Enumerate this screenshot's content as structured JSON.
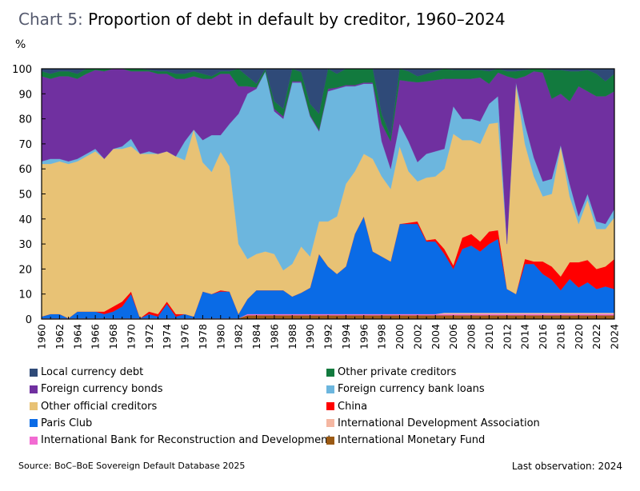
{
  "title": {
    "label": "Chart 5",
    "sep": ":",
    "text": " Proportion of debt in default by creditor, 1960–2024"
  },
  "footer": {
    "source": "Source: BoC–BoE Sovereign Default Database 2025",
    "last_observation": "Last observation: 2024"
  },
  "chart_data": {
    "type": "area",
    "stacked": true,
    "title": "Proportion of debt in default by creditor, 1960–2024",
    "ylabel": "%",
    "ylim": [
      0,
      100
    ],
    "yticks": [
      0,
      10,
      20,
      30,
      40,
      50,
      60,
      70,
      80,
      90,
      100
    ],
    "xlim": [
      1960,
      2024
    ],
    "xticks": [
      1960,
      1962,
      1964,
      1966,
      1968,
      1970,
      1972,
      1974,
      1976,
      1978,
      1980,
      1982,
      1984,
      1986,
      1988,
      1990,
      1992,
      1994,
      1996,
      1998,
      2000,
      2002,
      2004,
      2006,
      2008,
      2010,
      2012,
      2014,
      2016,
      2018,
      2020,
      2022,
      2024
    ],
    "grid": false,
    "legend_placement": "bottom",
    "x": [
      1960,
      1961,
      1962,
      1963,
      1964,
      1965,
      1966,
      1967,
      1968,
      1969,
      1970,
      1971,
      1972,
      1973,
      1974,
      1975,
      1976,
      1977,
      1978,
      1979,
      1980,
      1981,
      1982,
      1983,
      1984,
      1985,
      1986,
      1987,
      1988,
      1989,
      1990,
      1991,
      1992,
      1993,
      1994,
      1995,
      1996,
      1997,
      1998,
      1999,
      2000,
      2001,
      2002,
      2003,
      2004,
      2005,
      2006,
      2007,
      2008,
      2009,
      2010,
      2011,
      2012,
      2013,
      2014,
      2015,
      2016,
      2017,
      2018,
      2019,
      2020,
      2021,
      2022,
      2023,
      2024
    ],
    "series": [
      {
        "name": "International Monetary Fund",
        "color": "#9B5A14",
        "values": [
          0.3,
          0.3,
          0.3,
          0.3,
          0.3,
          0.3,
          0.3,
          0.3,
          0.3,
          0.3,
          0.3,
          0.3,
          0.3,
          0.3,
          0.3,
          0.3,
          0.3,
          0.3,
          0.3,
          0.3,
          0.3,
          0.3,
          0.3,
          1.5,
          1.5,
          1.5,
          1.5,
          1.5,
          1.5,
          1.5,
          1.5,
          1.5,
          1.5,
          1.5,
          1.5,
          1.5,
          1.5,
          1.5,
          1.5,
          1.5,
          1.5,
          1.5,
          1.5,
          1.5,
          1.5,
          1.5,
          1.5,
          1.5,
          1.5,
          1.5,
          1.5,
          1.5,
          1.5,
          1.5,
          1.5,
          1.5,
          1.5,
          1.5,
          1.5,
          1.5,
          1.5,
          1.5,
          1.5,
          1.5,
          1.5
        ]
      },
      {
        "name": "International Bank for Reconstruction and Development",
        "color": "#F26BD2",
        "values": [
          0,
          0,
          0,
          0,
          0,
          0,
          0,
          0,
          0,
          0,
          0,
          0,
          0,
          0,
          0,
          0,
          0,
          0,
          0,
          0,
          0,
          0,
          0,
          0.5,
          0.5,
          0.5,
          0.5,
          0.5,
          0.5,
          0.5,
          0.5,
          0.5,
          0.5,
          0.5,
          0.5,
          0.5,
          0.5,
          0.5,
          0.5,
          0.5,
          0.5,
          0.5,
          0.5,
          0.5,
          0.5,
          0.5,
          0.5,
          0.5,
          0.5,
          0.5,
          0.5,
          0.5,
          0.5,
          0.5,
          0.5,
          0.5,
          0.5,
          0.5,
          0.5,
          0.5,
          0.5,
          0.5,
          0.5,
          0.5,
          0.5
        ]
      },
      {
        "name": "International Development Association",
        "color": "#F5B7A2",
        "values": [
          0,
          0,
          0,
          0,
          0,
          0,
          0,
          0,
          0,
          0,
          0,
          0,
          0,
          0,
          0,
          0,
          0,
          0,
          0,
          0,
          0,
          0,
          0,
          0,
          0,
          0,
          0,
          0,
          0,
          0,
          0,
          0,
          0,
          0,
          0,
          0,
          0,
          0,
          0,
          0,
          0,
          0,
          0,
          0,
          0,
          0.5,
          0.5,
          0.5,
          0.5,
          0.5,
          0.5,
          0.5,
          0.5,
          0.5,
          0.5,
          0.5,
          0.5,
          0.5,
          0.5,
          0.5,
          0.5,
          0.5,
          0.5,
          0.5,
          0.5
        ]
      },
      {
        "name": "Paris Club",
        "color": "#0A6BE6",
        "values": [
          0.7,
          1.7,
          1.7,
          0,
          2.7,
          2.7,
          2.7,
          1.7,
          2.7,
          4.7,
          9.7,
          0,
          1.7,
          0.7,
          5.7,
          0.7,
          1.7,
          0.7,
          10.7,
          9.7,
          10.7,
          10.7,
          1.7,
          6,
          9.5,
          9.5,
          9.5,
          9.5,
          7,
          8.5,
          10.5,
          24,
          19,
          16,
          19,
          32,
          39,
          25,
          23,
          21,
          36,
          36,
          36,
          29,
          29,
          23.5,
          17.5,
          25.5,
          26.9,
          24.5,
          27.5,
          29.5,
          9.5,
          7.5,
          19.5,
          19.5,
          15.5,
          13.2,
          9,
          13.5,
          10.1,
          12.2,
          9.5,
          10.5,
          9.5
        ]
      },
      {
        "name": "China",
        "color": "#FF0000",
        "values": [
          0,
          0,
          0,
          0,
          0,
          0,
          0,
          1,
          2,
          2,
          1,
          0,
          1,
          1,
          1,
          1,
          0,
          0,
          0,
          0,
          0.5,
          0,
          0,
          0,
          0,
          0,
          0,
          0,
          0,
          0,
          0,
          0,
          0,
          0,
          0,
          0,
          0,
          0,
          0,
          0,
          0,
          0.5,
          1,
          0.5,
          1,
          2,
          1.5,
          4.5,
          4.6,
          4,
          5,
          3.5,
          0,
          0,
          2,
          1,
          5,
          5.3,
          5.5,
          6.7,
          10.1,
          8.9,
          8,
          8,
          12
        ]
      },
      {
        "name": "Other official creditors",
        "color": "#E8C275",
        "values": [
          61,
          60,
          61,
          61.7,
          60,
          62,
          64,
          61,
          63,
          61,
          58,
          65.7,
          63,
          64,
          60,
          63,
          61.5,
          74.7,
          51.6,
          48.8,
          55.3,
          50,
          28,
          16,
          14.5,
          15.5,
          14.5,
          8,
          13,
          18.5,
          12.5,
          13,
          18,
          23,
          33,
          25,
          25,
          37,
          32,
          29,
          31,
          20.5,
          16,
          25,
          25,
          32,
          52.5,
          39,
          37.5,
          39,
          43,
          43,
          18,
          84,
          46,
          34,
          26,
          29,
          52,
          26.3,
          15.3,
          24,
          16,
          15,
          16.6
        ]
      },
      {
        "name": "Foreign currency bank loans",
        "color": "#6CB6DE",
        "values": [
          1,
          2,
          1,
          1,
          1,
          1,
          1,
          0,
          0,
          1,
          3,
          0,
          1,
          0,
          0,
          0,
          7.5,
          0,
          8.9,
          14.7,
          6.7,
          17,
          52,
          66,
          66,
          72,
          57,
          60.5,
          72.5,
          65.5,
          56,
          36,
          52,
          51,
          39,
          34,
          28,
          30,
          14,
          8,
          9,
          12,
          7.7,
          9.5,
          10,
          8,
          11,
          8.5,
          8.5,
          9,
          8,
          10.5,
          0,
          0.5,
          8,
          7.5,
          6,
          6,
          0.5,
          5,
          3,
          2.4,
          3,
          2,
          3.4
        ]
      },
      {
        "name": "Foreign currency bonds",
        "color": "#7030A0",
        "values": [
          34,
          32,
          33,
          34,
          32,
          32,
          31.5,
          35,
          32,
          31,
          27,
          33,
          32,
          32,
          31,
          31,
          25,
          21.3,
          24.5,
          22.5,
          24.5,
          20,
          11,
          3,
          0.5,
          0,
          1,
          1,
          0.5,
          0.5,
          0.5,
          0.5,
          1,
          0.5,
          0.5,
          0.5,
          0.5,
          0.5,
          7,
          11,
          17.5,
          24,
          31.9,
          29,
          28.5,
          28,
          11,
          16,
          16,
          17.5,
          8,
          9.5,
          67,
          1.5,
          19,
          34.5,
          43.5,
          32,
          20.5,
          33,
          52,
          41,
          50,
          51,
          47
        ]
      },
      {
        "name": "Other private creditors",
        "color": "#127A3E",
        "values": [
          2,
          2,
          2,
          2,
          2,
          2,
          0.5,
          1,
          0,
          0,
          1,
          1,
          0.5,
          1,
          1,
          2,
          2,
          2,
          2,
          1,
          1,
          1,
          7,
          4,
          1.5,
          1,
          3,
          3,
          5,
          3.7,
          4.5,
          6.5,
          8,
          5.5,
          6.5,
          6.5,
          5.5,
          5.5,
          4,
          2,
          4.5,
          4,
          2.4,
          3,
          3.5,
          4,
          3.5,
          3.5,
          3.5,
          3,
          5,
          1.5,
          2,
          3,
          2.5,
          1,
          1.5,
          11.5,
          9.5,
          12,
          6,
          8.5,
          9,
          6,
          7
        ]
      },
      {
        "name": "Local currency debt",
        "color": "#2F4A78",
        "values": [
          1,
          2,
          1,
          1,
          2,
          0,
          0,
          0,
          0,
          0,
          0,
          0,
          0.5,
          1,
          1,
          2,
          2,
          1,
          2,
          3,
          1,
          1,
          0,
          3,
          6,
          0,
          13,
          16,
          0,
          1.3,
          14,
          18,
          0,
          2,
          0,
          0,
          0,
          0,
          18,
          27,
          0,
          1,
          3,
          2,
          1,
          0,
          0.5,
          0.5,
          0.5,
          0.5,
          1,
          0,
          1,
          1,
          0.5,
          0,
          0,
          0.5,
          0.5,
          1,
          1,
          0.5,
          2,
          5,
          2
        ]
      }
    ],
    "legend_order": [
      "Local currency debt",
      "Other private creditors",
      "Foreign currency bonds",
      "Foreign currency bank loans",
      "Other official creditors",
      "China",
      "Paris Club",
      "International Development Association",
      "International Bank for Reconstruction and Development",
      "International Monetary Fund"
    ]
  }
}
